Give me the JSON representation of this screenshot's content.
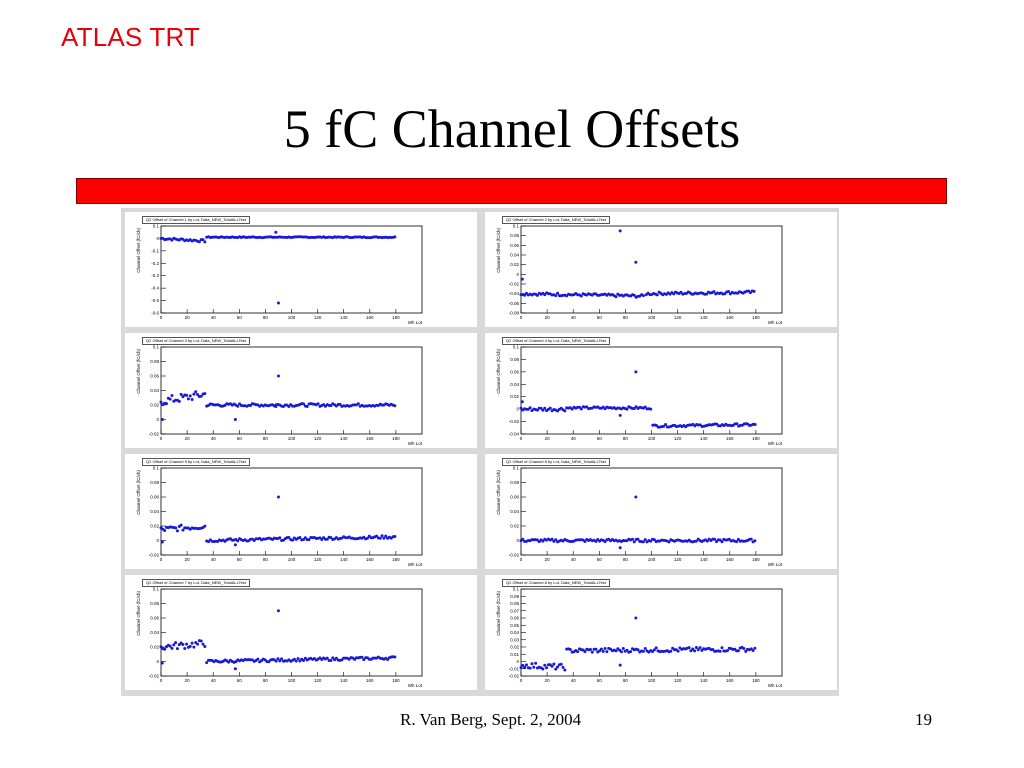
{
  "header": {
    "brand": "ATLAS TRT",
    "title": "5 fC Channel Offsets"
  },
  "footer": {
    "author_date": "R. Van Berg, Sept. 2, 2004",
    "page": "19"
  },
  "colors": {
    "brand": "#e8000b",
    "bar": "#ff0000",
    "points": "#1a1ad6"
  },
  "chart_data": [
    {
      "type": "scatter",
      "title": "Q2 Offset of Channel 1 by Lot, Data_NEW_TotalALLTest",
      "xlabel": "Wh Lot",
      "ylabel": "Channel Offset (fC/ch)",
      "xlim": [
        0,
        200
      ],
      "ylim": [
        -0.6,
        0.1
      ],
      "yticks": [
        "0.1",
        "0",
        "-0.1",
        "-0.2",
        "-0.3",
        "-0.4",
        "-0.5",
        "-0.6"
      ],
      "xticks": [
        "0",
        "20",
        "40",
        "60",
        "80",
        "100",
        "120",
        "140",
        "160",
        "180"
      ],
      "segments": [
        {
          "x": [
            0,
            34
          ],
          "y": [
            0.0,
            -0.02
          ],
          "noise": 0.01
        },
        {
          "x": [
            35,
            180
          ],
          "y": [
            0.01,
            0.01
          ],
          "noise": 0.004
        }
      ],
      "outliers": [
        {
          "x": 88,
          "y": 0.05
        },
        {
          "x": 90,
          "y": -0.52
        }
      ]
    },
    {
      "type": "scatter",
      "title": "Q2 Offset of Channel 2 by Lot, Data_NEW_TotalALLTest",
      "xlabel": "Wh Lot",
      "ylabel": "Channel Offset (fC/ch)",
      "xlim": [
        0,
        200
      ],
      "ylim": [
        -0.08,
        0.1
      ],
      "yticks": [
        "0.1",
        "0.08",
        "0.06",
        "0.04",
        "0.02",
        "0",
        "-0.02",
        "-0.04",
        "-0.06",
        "-0.08"
      ],
      "xticks": [
        "0",
        "20",
        "40",
        "60",
        "80",
        "100",
        "120",
        "140",
        "160",
        "180"
      ],
      "segments": [
        {
          "x": [
            0,
            95
          ],
          "y": [
            -0.04,
            -0.045
          ],
          "noise": 0.003
        },
        {
          "x": [
            96,
            180
          ],
          "y": [
            -0.04,
            -0.037
          ],
          "noise": 0.003
        }
      ],
      "outliers": [
        {
          "x": 1,
          "y": -0.01
        },
        {
          "x": 76,
          "y": 0.09
        },
        {
          "x": 88,
          "y": 0.025
        }
      ]
    },
    {
      "type": "scatter",
      "title": "Q2 Offset of Channel 3 by Lot, Data_NEW_TotalALLTest",
      "xlabel": "Wh Lot",
      "ylabel": "Channel Offset (fC/ch)",
      "xlim": [
        0,
        200
      ],
      "ylim": [
        -0.02,
        0.1
      ],
      "yticks": [
        "0.1",
        "0.08",
        "0.06",
        "0.04",
        "0.02",
        "0",
        "-0.02"
      ],
      "xticks": [
        "0",
        "20",
        "40",
        "60",
        "80",
        "100",
        "120",
        "140",
        "160",
        "180"
      ],
      "segments": [
        {
          "x": [
            0,
            34
          ],
          "y": [
            0.025,
            0.035
          ],
          "noise": 0.006
        },
        {
          "x": [
            35,
            180
          ],
          "y": [
            0.02,
            0.02
          ],
          "noise": 0.002
        }
      ],
      "outliers": [
        {
          "x": 1,
          "y": 0.0
        },
        {
          "x": 57,
          "y": 0.0
        },
        {
          "x": 90,
          "y": 0.06
        },
        {
          "x": 88,
          "y": 0.018
        }
      ]
    },
    {
      "type": "scatter",
      "title": "Q2 Offset of Channel 4 by Lot, Data_NEW_TotalALLTest",
      "xlabel": "Wh Lot",
      "ylabel": "Channel Offset (fC/ch)",
      "xlim": [
        0,
        200
      ],
      "ylim": [
        -0.04,
        0.1
      ],
      "yticks": [
        "0.1",
        "0.08",
        "0.06",
        "0.04",
        "0.02",
        "0",
        "-0.02",
        "-0.04"
      ],
      "xticks": [
        "0",
        "20",
        "40",
        "60",
        "80",
        "100",
        "120",
        "140",
        "160",
        "180"
      ],
      "segments": [
        {
          "x": [
            0,
            34
          ],
          "y": [
            0.0,
            0.0
          ],
          "noise": 0.003
        },
        {
          "x": [
            35,
            100
          ],
          "y": [
            0.002,
            0.002
          ],
          "noise": 0.002
        },
        {
          "x": [
            101,
            180
          ],
          "y": [
            -0.027,
            -0.025
          ],
          "noise": 0.002
        }
      ],
      "outliers": [
        {
          "x": 1,
          "y": 0.012
        },
        {
          "x": 76,
          "y": -0.01
        },
        {
          "x": 88,
          "y": 0.06
        }
      ]
    },
    {
      "type": "scatter",
      "title": "Q2 Offset of Channel 5 by Lot, Data_NEW_TotalALLTest",
      "xlabel": "Wh Lot",
      "ylabel": "Channel Offset (fC/ch)",
      "xlim": [
        0,
        200
      ],
      "ylim": [
        -0.02,
        0.1
      ],
      "yticks": [
        "0.1",
        "0.08",
        "0.06",
        "0.04",
        "0.02",
        "0",
        "-0.02"
      ],
      "xticks": [
        "0",
        "20",
        "40",
        "60",
        "80",
        "100",
        "120",
        "140",
        "160",
        "180"
      ],
      "segments": [
        {
          "x": [
            0,
            34
          ],
          "y": [
            0.015,
            0.02
          ],
          "noise": 0.004
        },
        {
          "x": [
            35,
            180
          ],
          "y": [
            0.0,
            0.005
          ],
          "noise": 0.002
        }
      ],
      "outliers": [
        {
          "x": 1,
          "y": -0.002
        },
        {
          "x": 57,
          "y": -0.006
        },
        {
          "x": 90,
          "y": 0.06
        }
      ]
    },
    {
      "type": "scatter",
      "title": "Q2 Offset of Channel 6 by Lot, Data_NEW_TotalALLTest",
      "xlabel": "Wh Lot",
      "ylabel": "Channel Offset (fC/ch)",
      "xlim": [
        0,
        200
      ],
      "ylim": [
        -0.02,
        0.1
      ],
      "yticks": [
        "0.1",
        "0.08",
        "0.06",
        "0.04",
        "0.02",
        "0",
        "-0.02"
      ],
      "xticks": [
        "0",
        "20",
        "40",
        "60",
        "80",
        "100",
        "120",
        "140",
        "160",
        "180"
      ],
      "segments": [
        {
          "x": [
            0,
            180
          ],
          "y": [
            0.0,
            0.0
          ],
          "noise": 0.002
        }
      ],
      "outliers": [
        {
          "x": 76,
          "y": -0.01
        },
        {
          "x": 88,
          "y": 0.06
        }
      ]
    },
    {
      "type": "scatter",
      "title": "Q2 Offset of Channel 7 by Lot, Data_NEW_TotalALLTest",
      "xlabel": "Wh Lot",
      "ylabel": "Channel Offset (fC/ch)",
      "xlim": [
        0,
        200
      ],
      "ylim": [
        -0.02,
        0.1
      ],
      "yticks": [
        "0.1",
        "0.08",
        "0.06",
        "0.04",
        "0.02",
        "0",
        "-0.02"
      ],
      "xticks": [
        "0",
        "20",
        "40",
        "60",
        "80",
        "100",
        "120",
        "140",
        "160",
        "180"
      ],
      "segments": [
        {
          "x": [
            0,
            34
          ],
          "y": [
            0.02,
            0.025
          ],
          "noise": 0.005
        },
        {
          "x": [
            35,
            180
          ],
          "y": [
            0.0,
            0.005
          ],
          "noise": 0.002
        }
      ],
      "outliers": [
        {
          "x": 1,
          "y": -0.002
        },
        {
          "x": 57,
          "y": -0.01
        },
        {
          "x": 90,
          "y": 0.07
        }
      ]
    },
    {
      "type": "scatter",
      "title": "Q2 Offset of Channel 8 by Lot, Data_NEW_TotalALLTest",
      "xlabel": "Wh Lot",
      "ylabel": "Channel Offset (fC/ch)",
      "xlim": [
        0,
        200
      ],
      "ylim": [
        -0.02,
        0.1
      ],
      "yticks": [
        "0.1",
        "0.09",
        "0.08",
        "0.07",
        "0.06",
        "0.05",
        "0.04",
        "0.03",
        "0.02",
        "0.01",
        "0",
        "-0.01",
        "-0.02"
      ],
      "xticks": [
        "0",
        "20",
        "40",
        "60",
        "80",
        "100",
        "120",
        "140",
        "160",
        "180"
      ],
      "segments": [
        {
          "x": [
            0,
            34
          ],
          "y": [
            -0.005,
            -0.008
          ],
          "noise": 0.004
        },
        {
          "x": [
            35,
            180
          ],
          "y": [
            0.015,
            0.017
          ],
          "noise": 0.003
        }
      ],
      "outliers": [
        {
          "x": 76,
          "y": -0.005
        },
        {
          "x": 88,
          "y": 0.06
        }
      ]
    }
  ]
}
